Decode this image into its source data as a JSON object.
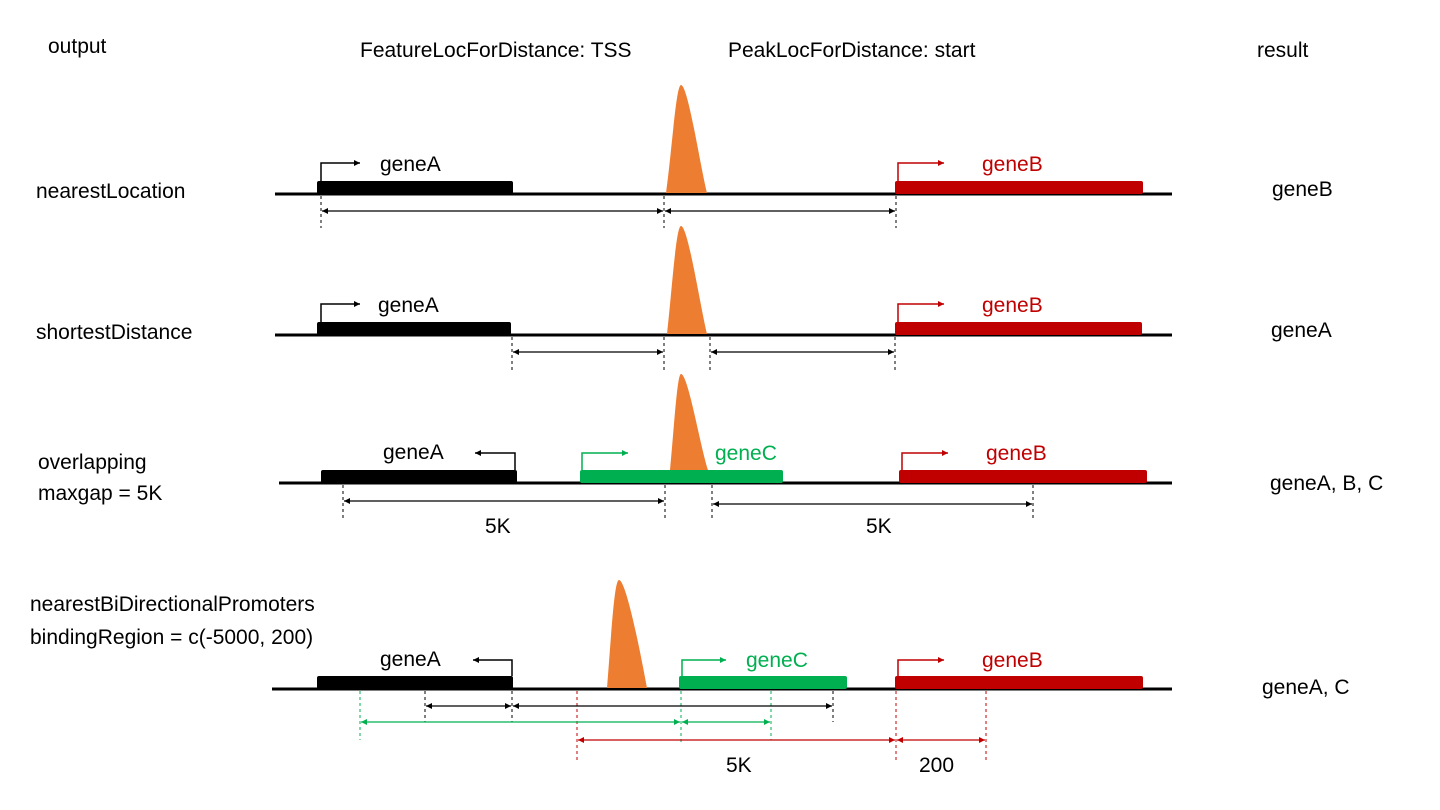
{
  "headers": {
    "output": "output",
    "feature_loc": "FeatureLocForDistance: TSS",
    "peak_loc": "PeakLocForDistance: start",
    "result": "result"
  },
  "colors": {
    "black": "#000000",
    "red": "#c00000",
    "green": "#00b050",
    "peak": "#ed7d31"
  },
  "rows": [
    {
      "output": [
        "nearestLocation"
      ],
      "result": "geneB",
      "genes": [
        {
          "name": "geneA",
          "color": "#000000"
        },
        {
          "name": "geneB",
          "color": "#c00000"
        }
      ]
    },
    {
      "output": [
        "shortestDistance"
      ],
      "result": "geneA",
      "genes": [
        {
          "name": "geneA",
          "color": "#000000"
        },
        {
          "name": "geneB",
          "color": "#c00000"
        }
      ]
    },
    {
      "output": [
        "overlapping",
        "maxgap = 5K"
      ],
      "result": "geneA, B, C",
      "genes": [
        {
          "name": "geneA",
          "color": "#000000"
        },
        {
          "name": "geneC",
          "color": "#00b050"
        },
        {
          "name": "geneB",
          "color": "#c00000"
        }
      ],
      "measures": [
        "5K",
        "5K"
      ]
    },
    {
      "output": [
        "nearestBiDirectionalPromoters",
        "bindingRegion = c(-5000, 200)"
      ],
      "result": "geneA, C",
      "genes": [
        {
          "name": "geneA",
          "color": "#000000"
        },
        {
          "name": "geneC",
          "color": "#00b050"
        },
        {
          "name": "geneB",
          "color": "#c00000"
        }
      ],
      "measures": [
        "5K",
        "200"
      ]
    }
  ]
}
